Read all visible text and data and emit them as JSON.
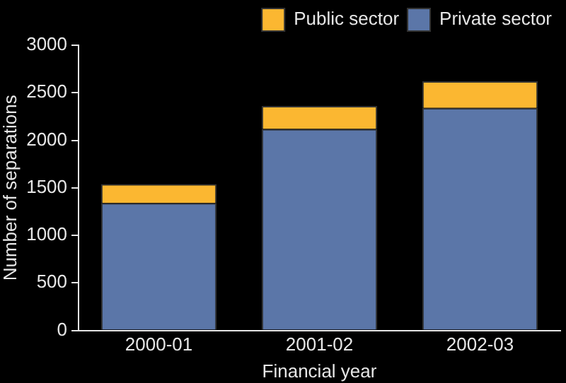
{
  "chart_data": {
    "type": "bar",
    "xlabel": "Financial year",
    "ylabel": "Number of separations",
    "categories": [
      "2000-01",
      "2001-02",
      "2002-03"
    ],
    "series": [
      {
        "name": "Private sector",
        "color": "#5b76a8",
        "values": [
          1340,
          2120,
          2340
        ]
      },
      {
        "name": "Public sector",
        "color": "#fbb731",
        "values": [
          200,
          240,
          280
        ]
      }
    ],
    "stacked": true,
    "ylim": [
      0,
      3000
    ],
    "yticks": [
      0,
      500,
      1000,
      1500,
      2000,
      2500,
      3000
    ],
    "grid": false,
    "legend": "top"
  }
}
